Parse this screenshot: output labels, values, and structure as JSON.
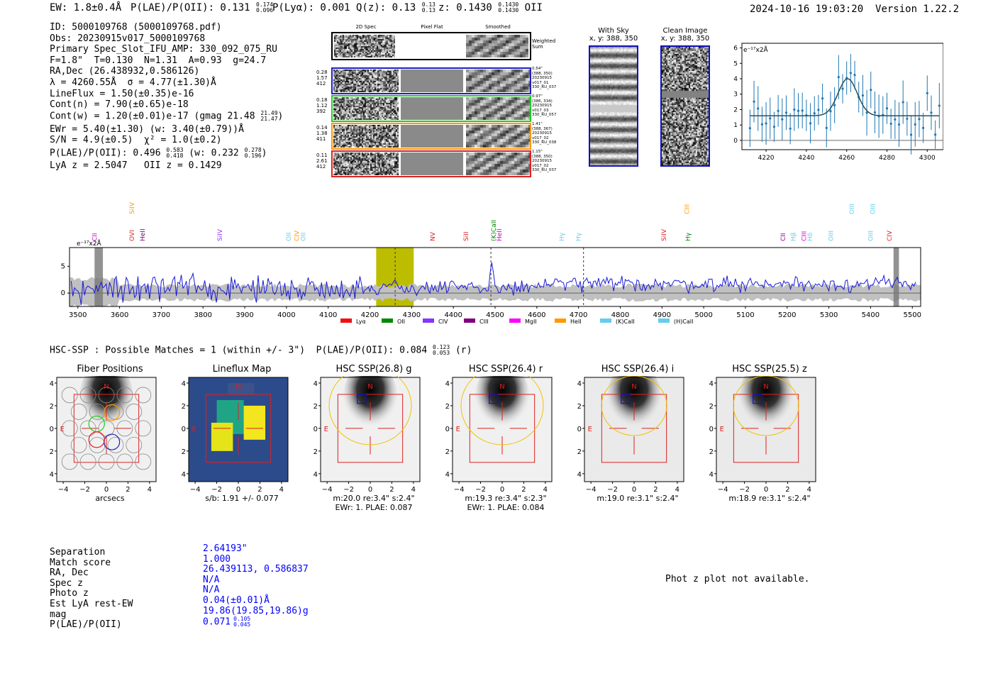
{
  "header": {
    "ew_label": "EW: 1.8±0.4Å",
    "plae_label": "P(LAE)/P(OII): 0.131",
    "plae_hi": "0.174",
    "plae_lo": "0.096",
    "plya_label": "P(Lyα): 0.001",
    "qz_label": "Q(z): 0.13",
    "qz_hi": "0.13",
    "qz_lo": "0.13",
    "z_label": "z: 0.1430",
    "z_hi": "0.1430",
    "z_lo": "0.1430",
    "z_line": "OII",
    "datetime": "2024-10-16 19:03:20",
    "version": "Version 1.22.2"
  },
  "info": {
    "id": "ID: 5000109768 (5000109768.pdf)",
    "obs": "Obs: 20230915v017_5000109768",
    "primary": "Primary Spec_Slot_IFU_AMP: 330_092_075_RU",
    "params": "F=1.8\"  T=0.130  N=1.31  A=0.93  g=24.7",
    "radec": "RA,Dec (26.438932,0.586126)",
    "lambda": "λ = 4260.55Å  σ = 4.77(±1.30)Å",
    "lineflux": "LineFlux = 1.50(±0.35)e-16",
    "contn": "Cont(n) = 7.90(±0.65)e-18",
    "contw": "Cont(w) = 1.20(±0.01)e-17 (gmag 21.48",
    "contw_hi": "21.49",
    "contw_lo": "21.47",
    "ewr": "EWr = 5.40(±1.30) (w: 3.40(±0.79))Å",
    "sn": "S/N = 4.9(±0.5)  χ² = 1.0(±0.2)",
    "plae": "P(LAE)/P(OII): 0.496",
    "plae_hi": "0.583",
    "plae_lo": "0.418",
    "plae_w": "(w: 0.232",
    "plae_w_hi": "0.278",
    "plae_w_lo": "0.196",
    "lya": "LyA z = 2.5047   OII z = 0.1429"
  },
  "spec2d": {
    "col1": "2D Spec",
    "col2": "Pixel Flat",
    "col3": "Smoothed",
    "weighted": "Weighted Sum",
    "fibers": [
      {
        "left": [
          "0.28",
          "1.57",
          "412"
        ],
        "right": [
          "0.54\"",
          "(388, 350)",
          "20230915",
          "v017_01",
          "330_RU_037"
        ],
        "color": "#2020c0"
      },
      {
        "left": [
          "0.18",
          "1.12",
          "392"
        ],
        "right": [
          "0.97\"",
          "(386, 334)",
          "20230915",
          "v017_03",
          "330_RU_057"
        ],
        "color": "#22cc22"
      },
      {
        "left": [
          "0.14",
          "1.38",
          "411"
        ],
        "right": [
          "1.41\"",
          "(388, 367)",
          "20230915",
          "v017_02",
          "330_RU_038"
        ],
        "color": "#ff9900"
      },
      {
        "left": [
          "0.11",
          "2.61",
          "412"
        ],
        "right": [
          "1.15\"",
          "(388, 350)",
          "20230915",
          "v017_02",
          "330_RU_037"
        ],
        "color": "#dd2222"
      }
    ]
  },
  "sky": {
    "title": "With Sky",
    "coords": "x, y: 388, 350",
    "clean_title": "Clean Image",
    "clean_coords": "x, y: 388, 350"
  },
  "zoom_plot": {
    "unit": "e⁻¹⁷x2Å",
    "yticks": [
      "6",
      "5",
      "4",
      "3",
      "2",
      "1",
      "0"
    ],
    "xticks": [
      "4220",
      "4240",
      "4260",
      "4280",
      "4300"
    ]
  },
  "spectrum": {
    "unit": "e⁻¹⁷x2Å",
    "yticks": [
      "5",
      "0"
    ],
    "xticks": [
      "3500",
      "3600",
      "3700",
      "3800",
      "3900",
      "4000",
      "4100",
      "4200",
      "4300",
      "4400",
      "4500",
      "4600",
      "4700",
      "4800",
      "4900",
      "5000",
      "5100",
      "5200",
      "5300",
      "5400",
      "5500"
    ],
    "line_labels": [
      {
        "text": "CII",
        "color": "#cc00cc",
        "wave": 3540,
        "row": 2
      },
      {
        "text": "SiIV",
        "color": "#ff9900",
        "wave": 3630,
        "row": 0
      },
      {
        "text": "OVI",
        "color": "#dd2222",
        "wave": 3630,
        "row": 2
      },
      {
        "text": "HeII",
        "color": "#800080",
        "wave": 3655,
        "row": 2
      },
      {
        "text": "SiIV",
        "color": "#9933ff",
        "wave": 3840,
        "row": 2
      },
      {
        "text": "OII",
        "color": "#66ccee",
        "wave": 4005,
        "row": 2
      },
      {
        "text": "CIV",
        "color": "#ff9900",
        "wave": 4025,
        "row": 2
      },
      {
        "text": "OII",
        "color": "#66ccee",
        "wave": 4040,
        "row": 2
      },
      {
        "text": "NV",
        "color": "#dd2222",
        "wave": 4350,
        "row": 2
      },
      {
        "text": "SiII",
        "color": "#dd2222",
        "wave": 4430,
        "row": 2
      },
      {
        "text": "(K)CaII",
        "color": "#008800",
        "wave": 4497,
        "row": 2
      },
      {
        "text": "HeII",
        "color": "#cc00cc",
        "wave": 4510,
        "row": 2
      },
      {
        "text": "Hγ",
        "color": "#66ccee",
        "wave": 4660,
        "row": 2
      },
      {
        "text": "Hγ",
        "color": "#66ccee",
        "wave": 4700,
        "row": 2
      },
      {
        "text": "SiIV",
        "color": "#dd2222",
        "wave": 4905,
        "row": 2
      },
      {
        "text": "CIII",
        "color": "#ff9900",
        "wave": 4960,
        "row": 0
      },
      {
        "text": "Hγ",
        "color": "#008800",
        "wave": 4962,
        "row": 2
      },
      {
        "text": "CII",
        "color": "#800080",
        "wave": 5190,
        "row": 2
      },
      {
        "text": "Hβ",
        "color": "#66ccee",
        "wave": 5215,
        "row": 2
      },
      {
        "text": "CIII",
        "color": "#cc00cc",
        "wave": 5240,
        "row": 2
      },
      {
        "text": "Hδ",
        "color": "#66ccee",
        "wave": 5255,
        "row": 2
      },
      {
        "text": "OIII",
        "color": "#66ccee",
        "wave": 5305,
        "row": 2
      },
      {
        "text": "OIII",
        "color": "#66ccee",
        "wave": 5355,
        "row": 0
      },
      {
        "text": "OIII",
        "color": "#66ccee",
        "wave": 5400,
        "row": 2
      },
      {
        "text": "OIII",
        "color": "#66ccee",
        "wave": 5405,
        "row": 0
      },
      {
        "text": "CIV",
        "color": "#dd2222",
        "wave": 5445,
        "row": 2
      }
    ],
    "legend": [
      {
        "label": "Lyα",
        "color": "#ee1111"
      },
      {
        "label": "OII",
        "color": "#008800"
      },
      {
        "label": "CIV",
        "color": "#8833ff"
      },
      {
        "label": "CIII",
        "color": "#800080"
      },
      {
        "label": "MgII",
        "color": "#ff00ff"
      },
      {
        "label": "HeII",
        "color": "#ff9900"
      },
      {
        "label": "(K)CaII",
        "color": "#66ccee"
      },
      {
        "label": "(H)CaII",
        "color": "#66ccee"
      }
    ]
  },
  "hsc": {
    "title": "HSC-SSP : Possible Matches = 1 (within +/- 3\")  P(LAE)/P(OII): 0.084",
    "hi": "0.123",
    "lo": "0.053",
    "band": "(r)"
  },
  "cutouts": [
    {
      "title": "Fiber Positions",
      "cap1": "arcsecs",
      "cap2": ""
    },
    {
      "title": "Lineflux Map",
      "cap1": "s/b: 1.91 +/- 0.077",
      "cap2": ""
    },
    {
      "title": "HSC SSP(26.8) g",
      "cap1": "m:20.0  re:3.4\"  s:2.4\"",
      "cap2": "EWr: 1. PLAE: 0.087"
    },
    {
      "title": "HSC SSP(26.4) r",
      "cap1": "m:19.3  re:3.4\"  s:2.3\"",
      "cap2": "EWr: 1. PLAE: 0.084"
    },
    {
      "title": "HSC SSP(26.4) i",
      "cap1": "m:19.0  re:3.1\"  s:2.4\"",
      "cap2": ""
    },
    {
      "title": "HSC SSP(25.5) z",
      "cap1": "m:18.9  re:3.1\"  s:2.4\"",
      "cap2": ""
    }
  ],
  "cutout_axis": {
    "xticks": [
      "−4",
      "−2",
      "0",
      "2",
      "4"
    ],
    "yticks": [
      "4",
      "2",
      "0",
      "−2",
      "−4"
    ],
    "north": "N",
    "east": "E"
  },
  "match": {
    "labels": [
      "Separation",
      "Match score",
      "RA, Dec",
      "Spec z",
      "Photo z",
      "Est LyA rest-EW",
      "mag",
      "P(LAE)/P(OII)"
    ],
    "values": [
      "2.64193\"",
      "1.000",
      "26.439113, 0.586837",
      "N/A",
      "N/A",
      "0.04(±0.01)Å",
      "19.86(19.85,19.86)g",
      "0.071"
    ],
    "plae_hi": "0.105",
    "plae_lo": "0.045",
    "photz_note": "Phot z plot not available."
  }
}
